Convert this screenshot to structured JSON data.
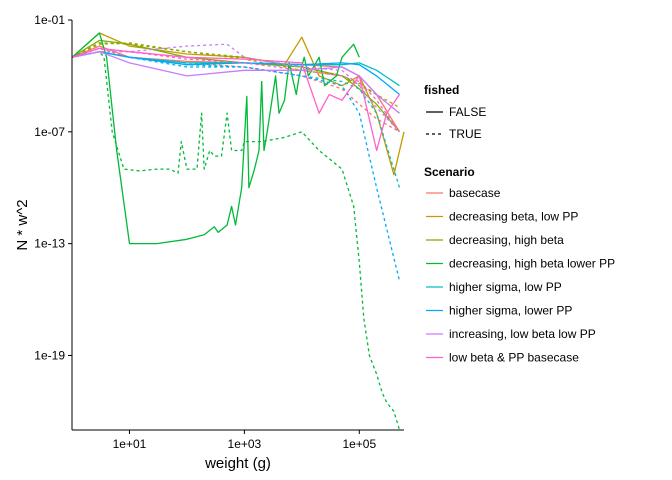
{
  "chart_data": {
    "type": "line",
    "title": "",
    "xlabel": "weight (g)",
    "ylabel": "N * w^2",
    "x_scale": "log10",
    "y_scale": "log10",
    "xlim": [
      1,
      600000
    ],
    "ylim": [
      1e-23,
      0.1
    ],
    "x_ticks": [
      {
        "value": 10,
        "label": "1e+01"
      },
      {
        "value": 1000,
        "label": "1e+03"
      },
      {
        "value": 100000,
        "label": "1e+05"
      }
    ],
    "y_ticks": [
      {
        "value": 0.1,
        "label": "1e-01"
      },
      {
        "value": 1e-07,
        "label": "1e-07"
      },
      {
        "value": 1e-13,
        "label": "1e-13"
      },
      {
        "value": 1e-19,
        "label": "1e-19"
      }
    ],
    "grid": false,
    "legend_position": "right",
    "linetype_legend": {
      "title": "fished",
      "items": [
        {
          "label": "FALSE",
          "dash": "solid"
        },
        {
          "label": "TRUE",
          "dash": "dashed"
        }
      ]
    },
    "color_legend": {
      "title": "Scenario",
      "items": [
        {
          "label": "basecase",
          "color": "#F8766D"
        },
        {
          "label": "decreasing beta, low PP",
          "color": "#C49A00"
        },
        {
          "label": "decreasing, high beta",
          "color": "#7CAE00"
        },
        {
          "label": "decreasing, high beta lower PP",
          "color": "#00BA38"
        },
        {
          "label": "higher sigma, low PP",
          "color": "#00BFC4"
        },
        {
          "label": "higher sigma, lower PP",
          "color": "#00A9FF"
        },
        {
          "label": "increasing, low beta low PP",
          "color": "#C77CFF"
        },
        {
          "label": "low beta & PP basecase",
          "color": "#FF61CC"
        }
      ]
    },
    "series": [
      {
        "scenario": 0,
        "fished": false,
        "x": [
          1,
          3,
          10,
          100,
          1000,
          10000,
          50000,
          100000,
          200000,
          500000
        ],
        "y": [
          0.001,
          0.004,
          0.001,
          0.0006,
          0.0005,
          0.0004,
          0.0003,
          0.0001,
          1e-05,
          1e-07
        ]
      },
      {
        "scenario": 0,
        "fished": true,
        "x": [
          1,
          3,
          10,
          100,
          1000,
          10000,
          50000,
          100000,
          200000,
          500000
        ],
        "y": [
          0.001,
          0.003,
          0.001,
          0.0005,
          0.0003,
          0.0001,
          2e-05,
          3e-06,
          5e-07,
          1e-07
        ]
      },
      {
        "scenario": 1,
        "fished": false,
        "x": [
          1,
          3,
          10,
          100,
          1000,
          5000,
          10000,
          20000,
          50000,
          100000,
          200000,
          400000,
          600000
        ],
        "y": [
          0.001,
          0.02,
          0.004,
          0.0015,
          0.001,
          0.0004,
          0.012,
          0.0001,
          3e-05,
          0.0001,
          1e-06,
          5e-10,
          1e-07
        ]
      },
      {
        "scenario": 1,
        "fished": true,
        "x": [
          1,
          3,
          10,
          100,
          1000,
          10000,
          50000,
          100000,
          200000,
          500000
        ],
        "y": [
          0.001,
          0.005,
          0.006,
          0.002,
          0.0008,
          0.0002,
          0.0001,
          3e-05,
          1e-05,
          2e-06
        ]
      },
      {
        "scenario": 2,
        "fished": false,
        "x": [
          1,
          3,
          10,
          100,
          1000,
          10000,
          50000,
          100000,
          200000,
          500000
        ],
        "y": [
          0.001,
          0.008,
          0.005,
          0.001,
          0.0005,
          0.0003,
          0.0001,
          2e-05,
          3e-06,
          1e-07
        ]
      },
      {
        "scenario": 2,
        "fished": true,
        "x": [
          1,
          3,
          10,
          100,
          1000,
          10000,
          50000,
          100000,
          200000,
          500000
        ],
        "y": [
          0.001,
          0.006,
          0.005,
          0.002,
          0.001,
          0.0003,
          0.0001,
          4e-05,
          1e-05,
          1e-06
        ]
      },
      {
        "scenario": 3,
        "fished": false,
        "x": [
          1,
          3,
          4,
          6,
          10,
          30,
          100,
          200,
          300,
          350,
          500,
          600,
          700,
          900,
          1100,
          1200,
          1500,
          1800,
          2000,
          2200,
          2500,
          3500,
          4000,
          5000,
          6000,
          8000,
          9000,
          11000,
          13000,
          20000,
          25000,
          40000,
          50000,
          80000,
          100000
        ],
        "y": [
          0.001,
          0.02,
          0.001,
          1e-08,
          1e-13,
          1e-13,
          1.7e-13,
          3e-13,
          8e-13,
          4e-13,
          1e-12,
          1e-11,
          1e-12,
          1e-10,
          8e-06,
          1e-10,
          1e-09,
          1e-08,
          5e-05,
          1e-08,
          1e-07,
          0.0001,
          1e-06,
          5e-06,
          0.0005,
          1e-05,
          0.0001,
          0.001,
          0.0001,
          0.001,
          3e-05,
          0.0001,
          0.001,
          0.005,
          0.001
        ]
      },
      {
        "scenario": 3,
        "fished": true,
        "x": [
          1,
          3,
          3.6,
          5,
          8,
          15,
          30,
          50,
          70,
          80,
          100,
          150,
          180,
          200,
          250,
          300,
          400,
          500,
          600,
          700,
          900,
          1000,
          2000,
          5000,
          10000,
          20000,
          50000,
          80000,
          100000,
          120000,
          150000,
          200000,
          250000,
          300000,
          400000,
          500000
        ],
        "y": [
          0.001,
          0.002,
          0.001,
          1e-07,
          1e-09,
          8e-10,
          1e-09,
          1e-09,
          6e-10,
          3e-08,
          1e-09,
          1e-09,
          1e-06,
          1e-09,
          1e-08,
          5e-09,
          5e-09,
          1e-06,
          1e-08,
          1e-08,
          1e-08,
          3e-08,
          3e-08,
          5e-08,
          1e-07,
          1e-08,
          1e-09,
          1e-11,
          1e-14,
          1e-17,
          1e-19,
          1e-20,
          1e-21,
          3e-22,
          1e-22,
          1e-23
        ]
      },
      {
        "scenario": 4,
        "fished": false,
        "x": [
          1,
          3,
          10,
          100,
          1000,
          10000,
          50000,
          100000,
          200000,
          500000
        ],
        "y": [
          0.001,
          0.002,
          0.001,
          0.0005,
          0.0005,
          0.0004,
          0.0004,
          0.0005,
          0.0002,
          3e-05
        ]
      },
      {
        "scenario": 4,
        "fished": true,
        "x": [
          1,
          3,
          10,
          100,
          1000,
          10000,
          50000,
          100000,
          200000,
          500000
        ],
        "y": [
          0.001,
          0.002,
          0.001,
          0.0004,
          0.0003,
          0.0001,
          5e-05,
          2e-05,
          1e-06,
          1e-10
        ]
      },
      {
        "scenario": 5,
        "fished": false,
        "x": [
          1,
          3,
          10,
          100,
          1000,
          10000,
          50000,
          100000,
          200000,
          500000
        ],
        "y": [
          0.001,
          0.002,
          0.001,
          0.0004,
          0.0005,
          0.0004,
          0.0005,
          0.0004,
          0.0001,
          1e-05
        ]
      },
      {
        "scenario": 5,
        "fished": true,
        "x": [
          1,
          3,
          10,
          100,
          1000,
          10000,
          50000,
          100000,
          200000,
          500000
        ],
        "y": [
          0.001,
          0.002,
          0.001,
          0.0003,
          0.0003,
          0.0001,
          3e-05,
          1e-06,
          1e-10,
          1e-15
        ]
      },
      {
        "scenario": 6,
        "fished": false,
        "x": [
          1,
          3,
          10,
          100,
          1000,
          10000,
          50000,
          100000,
          200000,
          500000
        ],
        "y": [
          0.001,
          0.002,
          0.0005,
          0.0001,
          0.0002,
          0.0002,
          0.0003,
          0.0001,
          1e-05,
          1e-06
        ]
      },
      {
        "scenario": 6,
        "fished": true,
        "x": [
          1,
          3,
          10,
          100,
          500,
          1000,
          10000,
          50000,
          100000,
          200000,
          500000
        ],
        "y": [
          0.001,
          0.002,
          0.002,
          0.004,
          0.005,
          0.001,
          0.0003,
          0.0002,
          3e-05,
          2e-06,
          1e-07
        ]
      },
      {
        "scenario": 7,
        "fished": false,
        "x": [
          1,
          3,
          10,
          100,
          1000,
          10000,
          20000,
          30000,
          50000,
          100000,
          200000,
          300000,
          500000
        ],
        "y": [
          0.001,
          0.003,
          0.002,
          0.001,
          0.0008,
          0.0005,
          1e-06,
          1e-05,
          5e-06,
          0.0001,
          1e-08,
          1e-06,
          1e-05
        ]
      },
      {
        "scenario": 7,
        "fished": true,
        "x": [
          1,
          3,
          10,
          100,
          1000,
          10000,
          50000,
          100000,
          200000,
          500000
        ],
        "y": [
          0.001,
          0.003,
          0.002,
          0.0008,
          0.0005,
          0.0002,
          0.0001,
          5e-05,
          5e-06,
          1e-07
        ]
      }
    ]
  }
}
